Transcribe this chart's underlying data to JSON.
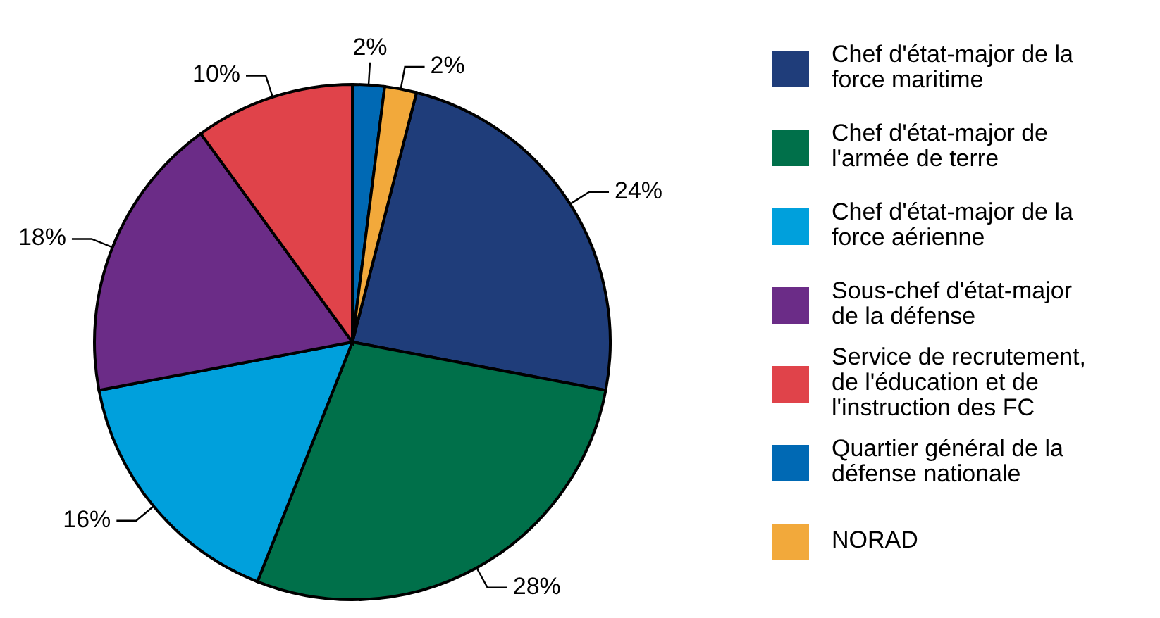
{
  "chart_data": {
    "type": "pie",
    "categories": [
      "Chef d'état-major de la force maritime",
      "Chef d'état-major de l'armée de terre",
      "Chef d'état-major de la force aérienne",
      "Sous-chef d'état-major de la défense",
      "Service de recrutement, de l'éducation et de l'instruction des FC",
      "Quartier général de la défense nationale",
      "NORAD"
    ],
    "values": [
      24,
      28,
      16,
      18,
      10,
      2,
      2
    ],
    "colors": [
      "#1f3d7a",
      "#00704a",
      "#00a0dc",
      "#6b2c87",
      "#e0434a",
      "#0069b4",
      "#f2a93b"
    ],
    "value_labels": [
      "24%",
      "28%",
      "16%",
      "18%",
      "10%",
      "2%",
      "2%"
    ],
    "legend": "right"
  }
}
